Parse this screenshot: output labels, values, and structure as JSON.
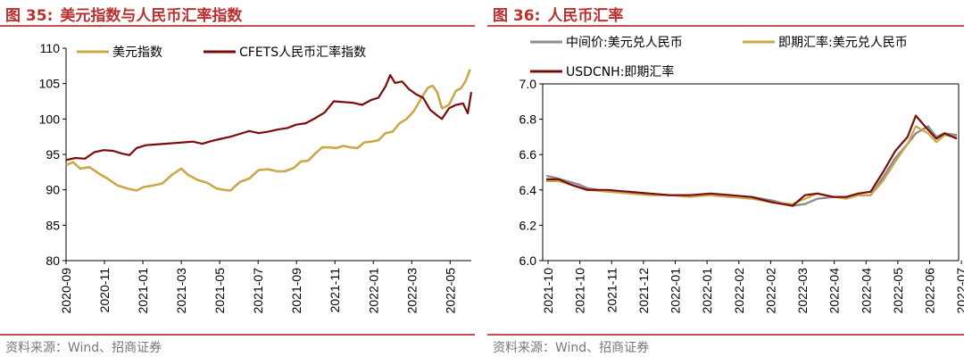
{
  "left": {
    "fig_label": "图 35:",
    "title": "美元指数与人民币汇率指数",
    "source": "资料来源：Wind、招商证券",
    "chart_data": {
      "type": "line",
      "title": "美元指数与人民币汇率指数",
      "ylim": [
        80,
        110
      ],
      "yticks": [
        "80",
        "85",
        "90",
        "95",
        "100",
        "105",
        "110"
      ],
      "x_range": [
        "2020-09",
        "2022-06"
      ],
      "xticks": [
        "2020-09",
        "2020-11",
        "2021-01",
        "2021-03",
        "2021-05",
        "2021-07",
        "2021-09",
        "2021-11",
        "2022-01",
        "2022-03",
        "2022-05"
      ],
      "legend_position": "top-left",
      "series": [
        {
          "name": "美元指数",
          "color": "#c9a84c",
          "points": [
            [
              0,
              93.5
            ],
            [
              0.3,
              93.9
            ],
            [
              0.6,
              93.0
            ],
            [
              1.0,
              93.2
            ],
            [
              1.4,
              92.3
            ],
            [
              1.8,
              91.5
            ],
            [
              2.2,
              90.6
            ],
            [
              2.6,
              90.2
            ],
            [
              3.0,
              89.9
            ],
            [
              3.3,
              90.4
            ],
            [
              3.7,
              90.6
            ],
            [
              4.1,
              90.9
            ],
            [
              4.5,
              92.1
            ],
            [
              4.9,
              93.0
            ],
            [
              5.2,
              92.1
            ],
            [
              5.6,
              91.4
            ],
            [
              6.0,
              91.0
            ],
            [
              6.4,
              90.2
            ],
            [
              6.7,
              90.0
            ],
            [
              7.0,
              89.9
            ],
            [
              7.4,
              91.1
            ],
            [
              7.8,
              91.6
            ],
            [
              8.2,
              92.8
            ],
            [
              8.6,
              92.9
            ],
            [
              9.0,
              92.6
            ],
            [
              9.3,
              92.6
            ],
            [
              9.7,
              93.1
            ],
            [
              10.0,
              94.0
            ],
            [
              10.3,
              94.1
            ],
            [
              10.6,
              95.1
            ],
            [
              10.9,
              96.0
            ],
            [
              11.2,
              96.0
            ],
            [
              11.5,
              95.9
            ],
            [
              11.8,
              96.2
            ],
            [
              12.1,
              96.0
            ],
            [
              12.4,
              95.9
            ],
            [
              12.7,
              96.7
            ],
            [
              13.0,
              96.8
            ],
            [
              13.3,
              97.0
            ],
            [
              13.6,
              98.0
            ],
            [
              13.9,
              98.2
            ],
            [
              14.2,
              99.4
            ],
            [
              14.5,
              100.0
            ],
            [
              14.8,
              101.1
            ],
            [
              15.1,
              102.8
            ],
            [
              15.4,
              104.4
            ],
            [
              15.6,
              104.7
            ],
            [
              15.8,
              103.8
            ],
            [
              16.0,
              101.5
            ],
            [
              16.3,
              102.0
            ],
            [
              16.6,
              104.0
            ],
            [
              16.8,
              104.3
            ],
            [
              17.0,
              105.3
            ],
            [
              17.2,
              107.0
            ]
          ]
        },
        {
          "name": "CFETS人民币汇率指数",
          "color": "#7a0c0c",
          "points": [
            [
              0,
              94.2
            ],
            [
              0.4,
              94.5
            ],
            [
              0.8,
              94.4
            ],
            [
              1.2,
              95.3
            ],
            [
              1.6,
              95.6
            ],
            [
              2.0,
              95.5
            ],
            [
              2.4,
              95.1
            ],
            [
              2.7,
              94.9
            ],
            [
              3.0,
              95.9
            ],
            [
              3.4,
              96.3
            ],
            [
              3.8,
              96.4
            ],
            [
              4.2,
              96.5
            ],
            [
              4.6,
              96.6
            ],
            [
              5.0,
              96.7
            ],
            [
              5.4,
              96.8
            ],
            [
              5.8,
              96.5
            ],
            [
              6.2,
              96.9
            ],
            [
              6.6,
              97.2
            ],
            [
              7.0,
              97.5
            ],
            [
              7.4,
              97.9
            ],
            [
              7.8,
              98.3
            ],
            [
              8.2,
              98.0
            ],
            [
              8.6,
              98.2
            ],
            [
              9.0,
              98.5
            ],
            [
              9.4,
              98.7
            ],
            [
              9.8,
              99.2
            ],
            [
              10.2,
              99.4
            ],
            [
              10.6,
              100.1
            ],
            [
              11.0,
              100.9
            ],
            [
              11.4,
              102.5
            ],
            [
              11.8,
              102.4
            ],
            [
              12.2,
              102.3
            ],
            [
              12.6,
              102.0
            ],
            [
              13.0,
              102.7
            ],
            [
              13.3,
              103.0
            ],
            [
              13.6,
              104.6
            ],
            [
              13.8,
              106.2
            ],
            [
              14.0,
              105.1
            ],
            [
              14.3,
              105.3
            ],
            [
              14.6,
              104.2
            ],
            [
              14.9,
              103.5
            ],
            [
              15.2,
              103.0
            ],
            [
              15.5,
              101.3
            ],
            [
              15.8,
              100.5
            ],
            [
              16.0,
              100.0
            ],
            [
              16.3,
              101.5
            ],
            [
              16.6,
              102.0
            ],
            [
              16.9,
              102.2
            ],
            [
              17.0,
              101.5
            ],
            [
              17.1,
              100.8
            ],
            [
              17.25,
              103.8
            ]
          ]
        }
      ]
    }
  },
  "right": {
    "fig_label": "图 36:",
    "title": "人民币汇率",
    "source": "资料来源：Wind、招商证券",
    "chart_data": {
      "type": "line",
      "title": "人民币汇率",
      "ylim": [
        6.0,
        7.0
      ],
      "yticks": [
        "6.0",
        "6.2",
        "6.4",
        "6.6",
        "6.8",
        "7.0"
      ],
      "x_range": [
        "2021-10",
        "2022-07"
      ],
      "xticks": [
        "2021-10",
        "2021-10",
        "2021-11",
        "2021-12",
        "2022-01",
        "2022-01",
        "2022-02",
        "2022-02",
        "2022-03",
        "2022-04",
        "2022-04",
        "2022-05",
        "2022-06",
        "2022-07"
      ],
      "legend_position": "top-left",
      "series": [
        {
          "name": "中间价:美元兑人民币",
          "color": "#8c8c8c",
          "points": [
            [
              0,
              6.48
            ],
            [
              0.02,
              6.47
            ],
            [
              0.05,
              6.45
            ],
            [
              0.08,
              6.43
            ],
            [
              0.1,
              6.41
            ],
            [
              0.15,
              6.39
            ],
            [
              0.2,
              6.39
            ],
            [
              0.25,
              6.38
            ],
            [
              0.3,
              6.37
            ],
            [
              0.35,
              6.37
            ],
            [
              0.4,
              6.37
            ],
            [
              0.45,
              6.36
            ],
            [
              0.5,
              6.36
            ],
            [
              0.55,
              6.34
            ],
            [
              0.6,
              6.31
            ],
            [
              0.63,
              6.32
            ],
            [
              0.66,
              6.35
            ],
            [
              0.7,
              6.36
            ],
            [
              0.73,
              6.36
            ],
            [
              0.76,
              6.37
            ],
            [
              0.79,
              6.37
            ],
            [
              0.82,
              6.47
            ],
            [
              0.85,
              6.58
            ],
            [
              0.88,
              6.66
            ],
            [
              0.9,
              6.72
            ],
            [
              0.93,
              6.76
            ],
            [
              0.95,
              6.7
            ],
            [
              0.97,
              6.72
            ],
            [
              1.0,
              6.71
            ]
          ]
        },
        {
          "name": "即期汇率:美元兑人民币",
          "color": "#c9a84c",
          "points": [
            [
              0,
              6.45
            ],
            [
              0.03,
              6.45
            ],
            [
              0.06,
              6.43
            ],
            [
              0.1,
              6.4
            ],
            [
              0.15,
              6.39
            ],
            [
              0.2,
              6.38
            ],
            [
              0.25,
              6.37
            ],
            [
              0.3,
              6.37
            ],
            [
              0.35,
              6.36
            ],
            [
              0.4,
              6.37
            ],
            [
              0.45,
              6.36
            ],
            [
              0.5,
              6.35
            ],
            [
              0.55,
              6.33
            ],
            [
              0.6,
              6.32
            ],
            [
              0.63,
              6.35
            ],
            [
              0.66,
              6.38
            ],
            [
              0.7,
              6.36
            ],
            [
              0.73,
              6.35
            ],
            [
              0.76,
              6.37
            ],
            [
              0.79,
              6.37
            ],
            [
              0.82,
              6.45
            ],
            [
              0.85,
              6.56
            ],
            [
              0.88,
              6.66
            ],
            [
              0.9,
              6.76
            ],
            [
              0.93,
              6.72
            ],
            [
              0.95,
              6.67
            ],
            [
              0.97,
              6.71
            ],
            [
              1.0,
              6.7
            ]
          ]
        },
        {
          "name": "USDCNH:即期汇率",
          "color": "#7a0c0c",
          "points": [
            [
              0,
              6.46
            ],
            [
              0.03,
              6.46
            ],
            [
              0.06,
              6.43
            ],
            [
              0.1,
              6.4
            ],
            [
              0.15,
              6.4
            ],
            [
              0.2,
              6.39
            ],
            [
              0.25,
              6.38
            ],
            [
              0.3,
              6.37
            ],
            [
              0.35,
              6.37
            ],
            [
              0.4,
              6.38
            ],
            [
              0.45,
              6.37
            ],
            [
              0.5,
              6.36
            ],
            [
              0.55,
              6.33
            ],
            [
              0.6,
              6.31
            ],
            [
              0.63,
              6.37
            ],
            [
              0.66,
              6.38
            ],
            [
              0.7,
              6.36
            ],
            [
              0.73,
              6.36
            ],
            [
              0.76,
              6.38
            ],
            [
              0.79,
              6.39
            ],
            [
              0.82,
              6.5
            ],
            [
              0.85,
              6.62
            ],
            [
              0.88,
              6.7
            ],
            [
              0.9,
              6.82
            ],
            [
              0.93,
              6.74
            ],
            [
              0.95,
              6.69
            ],
            [
              0.97,
              6.72
            ],
            [
              1.0,
              6.69
            ]
          ]
        }
      ]
    }
  }
}
